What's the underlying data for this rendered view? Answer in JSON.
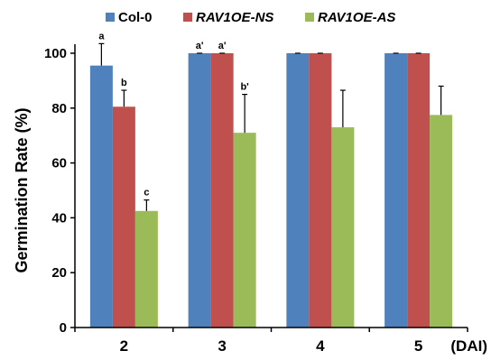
{
  "chart_data": {
    "type": "bar",
    "title": "",
    "xlabel": "",
    "x_unit_label": "(DAI)",
    "ylabel": "Germination Rate (%)",
    "ylim": [
      0,
      100
    ],
    "yticks": [
      0,
      20,
      40,
      60,
      80,
      100
    ],
    "categories": [
      "2",
      "3",
      "4",
      "5"
    ],
    "legend_position": "top",
    "grid": false,
    "series": [
      {
        "name": "Col-0",
        "italic": false,
        "color": "#4F81BD",
        "values": [
          95.5,
          100,
          100,
          100
        ],
        "errors": [
          8,
          0,
          0,
          0
        ],
        "labels": [
          "a",
          "a'",
          "",
          ""
        ]
      },
      {
        "name": "RAV1OE-NS",
        "italic": true,
        "color": "#C0504D",
        "values": [
          80.5,
          100,
          100,
          100
        ],
        "errors": [
          6,
          0,
          0,
          0
        ],
        "labels": [
          "b",
          "a'",
          "",
          ""
        ]
      },
      {
        "name": "RAV1OE-AS",
        "italic": true,
        "color": "#9BBB59",
        "values": [
          42.5,
          71,
          73,
          77.5
        ],
        "errors": [
          4,
          14,
          13.5,
          10.5
        ],
        "labels": [
          "c",
          "b'",
          "",
          ""
        ]
      }
    ]
  }
}
